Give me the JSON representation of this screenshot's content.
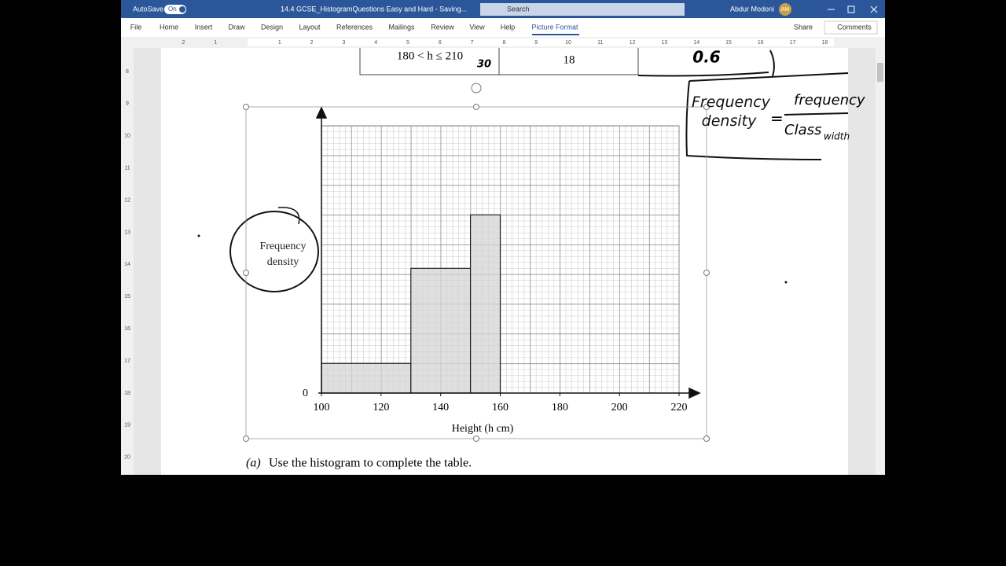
{
  "window": {
    "autosave": "AutoSave",
    "toggle": "On",
    "filename": "14.4 GCSE_HistogramQuestions Easy and Hard - Saving...",
    "search": "Search",
    "user": "Abdur Modoni",
    "initials": "AM"
  },
  "ribbon": {
    "tabs": [
      "File",
      "Home",
      "Insert",
      "Draw",
      "Design",
      "Layout",
      "References",
      "Mailings",
      "Review",
      "View",
      "Help",
      "Picture Format"
    ],
    "share": "Share",
    "comments": "Comments"
  },
  "ruler": {
    "horizontal": [
      2,
      1,
      1,
      2,
      3,
      4,
      5,
      6,
      7,
      8,
      9,
      10,
      11,
      12,
      13,
      14,
      15,
      16,
      17,
      18
    ],
    "vertical": [
      8,
      9,
      10,
      11,
      12,
      13,
      14,
      15,
      16,
      17,
      18,
      19,
      20
    ]
  },
  "table_row": {
    "interval": "180 < h ≤ 210",
    "width_note": "30",
    "frequency": "18",
    "density_note": "0.6"
  },
  "annotations": {
    "formula_lhs": "Frequency density",
    "equals": "=",
    "numerator": "frequency",
    "denominator": "Class",
    "denominator_sub": "width"
  },
  "chart_data": {
    "type": "histogram",
    "ylabel": "Frequency density",
    "xlabel": "Height (h cm)",
    "bins": [
      100,
      130,
      150,
      160
    ],
    "values": [
      5,
      21,
      30
    ],
    "color": "#d4d4d4",
    "xlim": [
      100,
      220
    ],
    "xticks": [
      100,
      120,
      140,
      160,
      180,
      200,
      220
    ],
    "ylim": [
      0,
      45
    ],
    "yticks": [
      0
    ],
    "grid": true
  },
  "question": {
    "label": "(a)",
    "text": "Use the histogram to complete the table."
  }
}
